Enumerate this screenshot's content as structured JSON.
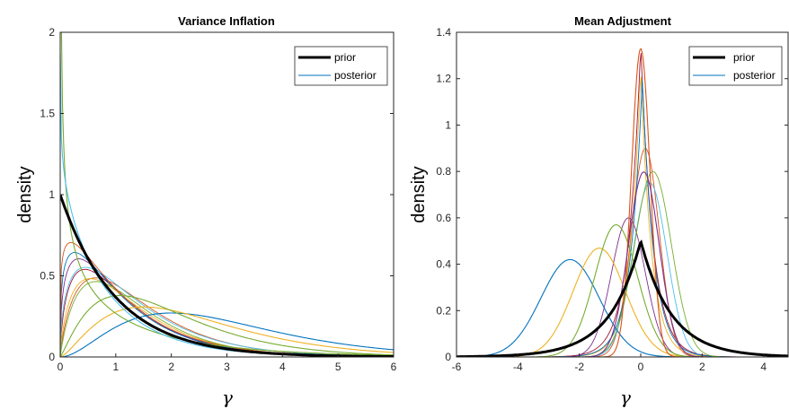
{
  "chart_data": [
    {
      "type": "line",
      "title": "Variance Inflation",
      "xlabel": "γ",
      "ylabel": "density",
      "xlim": [
        0,
        6
      ],
      "ylim": [
        0,
        2
      ],
      "xticks": [
        "0",
        "1",
        "2",
        "3",
        "4",
        "5",
        "6"
      ],
      "yticks": [
        "0",
        "0.5",
        "1",
        "1.5",
        "2"
      ],
      "legend": {
        "position": "top-right",
        "entries": [
          "prior",
          "posterior"
        ]
      },
      "series": [
        {
          "name": "prior",
          "color": "#000000",
          "function": "exp(-x)"
        },
        {
          "name": "posterior",
          "color": "#0072BD",
          "function": "gamma(shape=3, scale=1)"
        },
        {
          "color": "#EDB120",
          "function": "gamma(shape=2.5, scale=1)"
        },
        {
          "color": "#77AC30",
          "function": "gamma(shape=2.2, scale=0.9)"
        },
        {
          "color": "#77AC30",
          "function": "gamma(shape=0.6, scale=2)"
        },
        {
          "color": "#4DBEEE",
          "function": "gamma(shape=0.9, scale=1)"
        }
      ]
    },
    {
      "type": "line",
      "title": "Mean Adjustment",
      "xlabel": "γ",
      "ylabel": "density",
      "xlim": [
        -6,
        4.8
      ],
      "ylim": [
        0,
        1.4
      ],
      "xticks": [
        "-6",
        "-4",
        "-2",
        "0",
        "2",
        "4"
      ],
      "yticks": [
        "0",
        "0.2",
        "0.4",
        "0.6",
        "0.8",
        "1",
        "1.2",
        "1.4"
      ],
      "legend": {
        "position": "top-right",
        "entries": [
          "prior",
          "posterior"
        ]
      },
      "series": [
        {
          "name": "prior",
          "color": "#000000",
          "function": "0.5*exp(-|x|)"
        },
        {
          "name": "posterior",
          "color": "#0072BD",
          "function": "normal(mean=-2.3, sd=0.95)"
        },
        {
          "color": "#EDB120",
          "function": "normal(mean=-1.35, sd=0.85)"
        },
        {
          "color": "#77AC30",
          "function": "normal(mean=-0.8, sd=0.7)"
        },
        {
          "color": "#D95319",
          "function": "normal(mean=0, sd=0.3)"
        },
        {
          "color": "#7E2F8E",
          "function": "normal(mean=0.1, sd=0.5)"
        }
      ]
    }
  ]
}
